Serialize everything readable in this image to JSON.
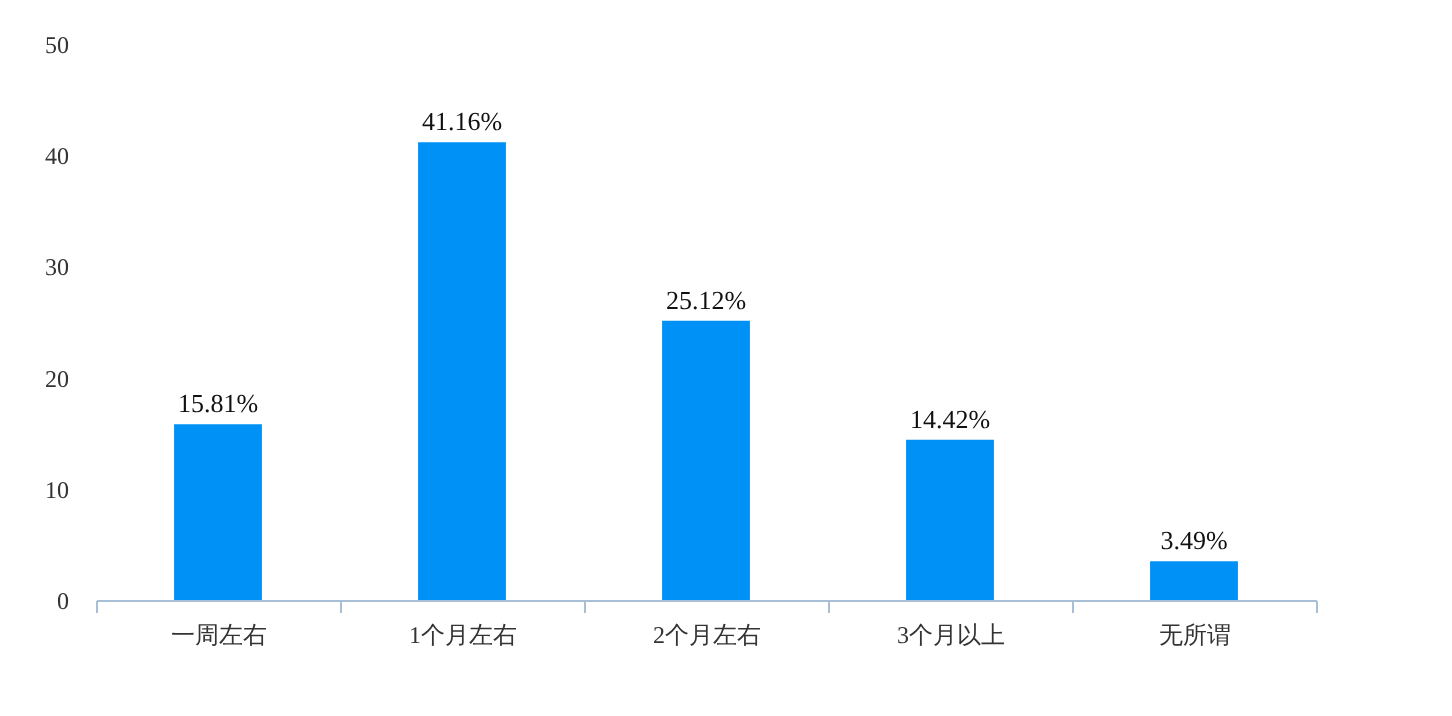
{
  "chart_data": {
    "type": "bar",
    "categories": [
      "一周左右",
      "1个月左右",
      "2个月左右",
      "3个月以上",
      "无所谓"
    ],
    "values": [
      15.81,
      41.16,
      25.12,
      14.42,
      3.49
    ],
    "value_labels": [
      "15.81%",
      "41.16%",
      "25.12%",
      "14.42%",
      "3.49%"
    ],
    "color": "#0091f7",
    "ylim": [
      0,
      50
    ],
    "yticks": [
      0,
      10,
      20,
      30,
      40,
      50
    ],
    "grid": false
  }
}
